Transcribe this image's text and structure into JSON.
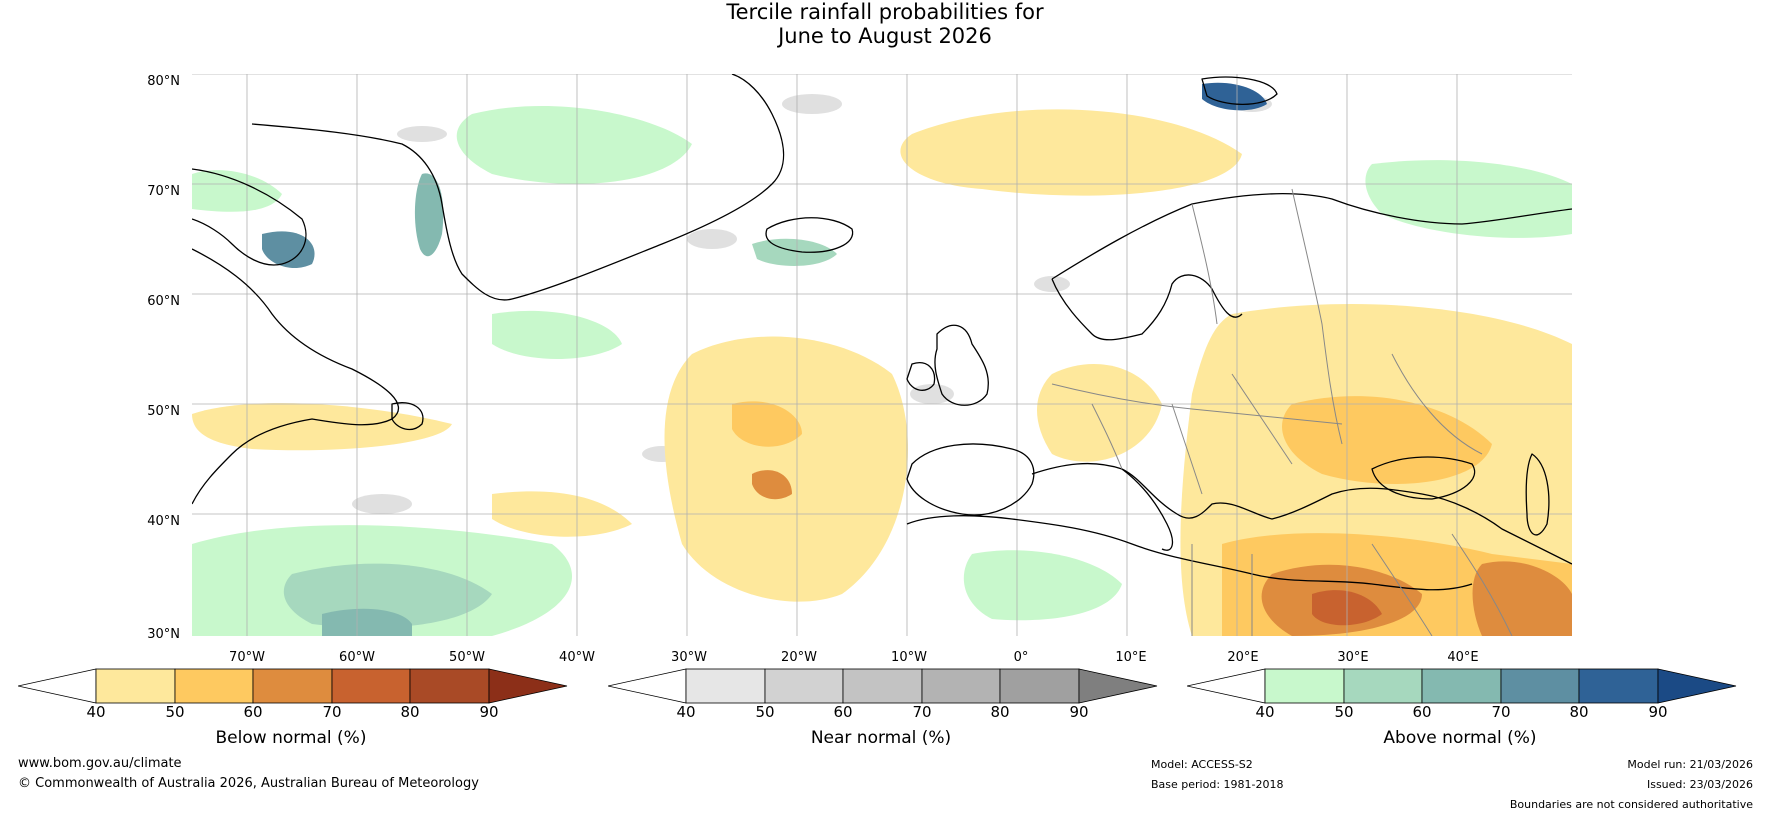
{
  "title": {
    "line1": "Tercile rainfall probabilities for",
    "line2": "June to August 2026"
  },
  "map": {
    "region": "North Atlantic and Europe",
    "lat_labels": [
      "80°N",
      "70°N",
      "60°N",
      "50°N",
      "40°N",
      "30°N"
    ],
    "lon_labels": [
      "70°W",
      "60°W",
      "50°W",
      "40°W",
      "30°W",
      "20°W",
      "10°W",
      "0°",
      "10°E",
      "20°E",
      "30°E",
      "40°E"
    ]
  },
  "colorbars": [
    {
      "label": "Below normal (%)",
      "ticks": [
        "40",
        "50",
        "60",
        "70",
        "80",
        "90"
      ],
      "colors": [
        "#ffffff",
        "#fee89c",
        "#fec960",
        "#de8c3e",
        "#c8622f",
        "#a94a26",
        "#8c2f18"
      ]
    },
    {
      "label": "Near normal (%)",
      "ticks": [
        "40",
        "50",
        "60",
        "70",
        "80",
        "90"
      ],
      "colors": [
        "#ffffff",
        "#e6e6e6",
        "#d2d2d2",
        "#c3c3c3",
        "#b3b3b3",
        "#a0a0a0",
        "#7f7f7f"
      ]
    },
    {
      "label": "Above normal (%)",
      "ticks": [
        "40",
        "50",
        "60",
        "70",
        "80",
        "90"
      ],
      "colors": [
        "#ffffff",
        "#c8f8cc",
        "#a6d8be",
        "#84b9b0",
        "#5e8fa2",
        "#2f6296",
        "#1b4a85"
      ]
    }
  ],
  "footer": {
    "website": "www.bom.gov.au/climate",
    "copyright": "© Commonwealth of Australia 2026, Australian Bureau of Meteorology",
    "model": "Model: ACCESS-S2",
    "base_period": "Base period: 1981-2018",
    "model_run": "Model run: 21/03/2026",
    "issued": "Issued: 23/03/2026",
    "disclaimer": "Boundaries are not considered authoritative"
  }
}
